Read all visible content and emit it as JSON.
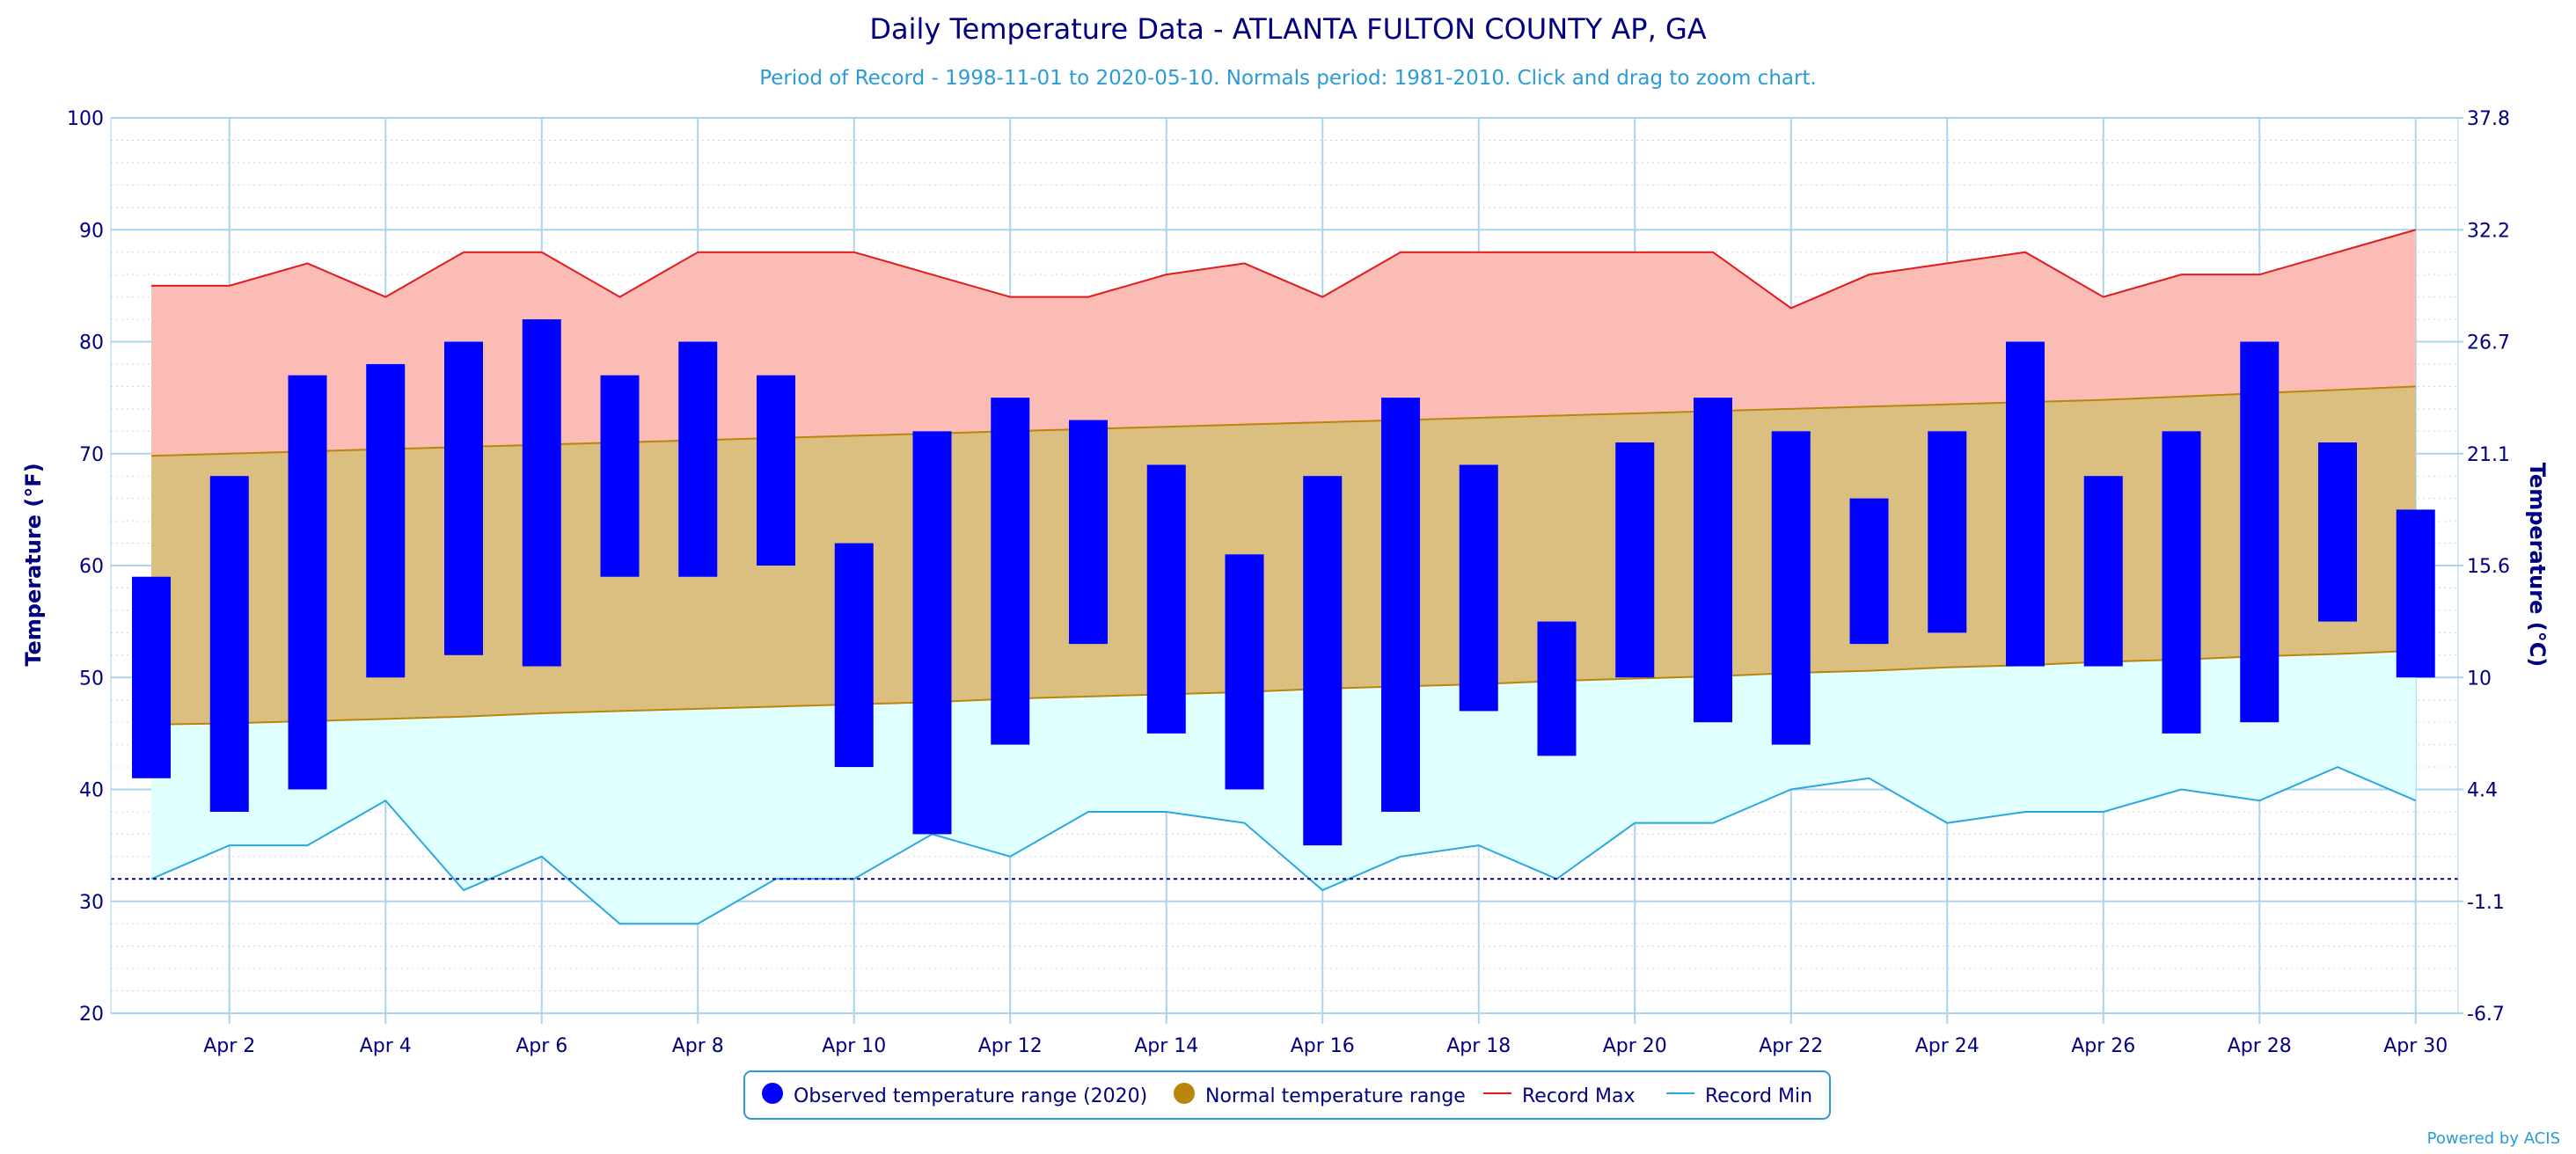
{
  "chart_data": {
    "type": "bar",
    "title": "Daily Temperature Data - ATLANTA FULTON COUNTY AP, GA",
    "subtitle": "Period of Record - 1998-11-01 to 2020-05-10. Normals period: 1981-2010. Click and drag to zoom chart.",
    "ylabel": "Temperature (°F)",
    "ylabel_right": "Temperature (°C)",
    "ylim": [
      20,
      100
    ],
    "y_ticks": [
      20,
      30,
      40,
      50,
      60,
      70,
      80,
      90,
      100
    ],
    "y_ticks_right": [
      "-6.7",
      "-1.1",
      "4.4",
      "10",
      "15.6",
      "21.1",
      "26.7",
      "32.2",
      "37.8"
    ],
    "x_ticks": [
      "Apr 2",
      "Apr 4",
      "Apr 6",
      "Apr 8",
      "Apr 10",
      "Apr 12",
      "Apr 14",
      "Apr 16",
      "Apr 18",
      "Apr 20",
      "Apr 22",
      "Apr 24",
      "Apr 26",
      "Apr 28",
      "Apr 30"
    ],
    "x_days": [
      1,
      2,
      3,
      4,
      5,
      6,
      7,
      8,
      9,
      10,
      11,
      12,
      13,
      14,
      15,
      16,
      17,
      18,
      19,
      20,
      21,
      22,
      23,
      24,
      25,
      26,
      27,
      28,
      29,
      30
    ],
    "freezing_line": 32,
    "grid": true,
    "legend_position": "bottom",
    "series": [
      {
        "name": "Observed temperature range (2020)",
        "color": "#0000ff",
        "low": [
          41,
          38,
          40,
          50,
          52,
          51,
          59,
          59,
          60,
          42,
          36,
          44,
          53,
          45,
          40,
          35,
          38,
          47,
          43,
          50,
          46,
          44,
          53,
          54,
          51,
          51,
          45,
          46,
          55,
          50
        ],
        "high": [
          59,
          68,
          77,
          78,
          80,
          82,
          77,
          80,
          77,
          62,
          72,
          75,
          73,
          69,
          61,
          68,
          75,
          69,
          55,
          71,
          75,
          72,
          66,
          72,
          80,
          68,
          72,
          80,
          71,
          65
        ]
      },
      {
        "name": "Normal temperature range",
        "color": "#b8860b",
        "low": [
          45.8,
          45.9,
          46.1,
          46.3,
          46.5,
          46.8,
          47.0,
          47.2,
          47.4,
          47.6,
          47.8,
          48.1,
          48.3,
          48.5,
          48.7,
          49.0,
          49.2,
          49.4,
          49.7,
          49.9,
          50.1,
          50.4,
          50.6,
          50.9,
          51.1,
          51.4,
          51.6,
          51.9,
          52.1,
          52.4
        ],
        "high": [
          69.8,
          70.0,
          70.2,
          70.4,
          70.6,
          70.8,
          71.0,
          71.2,
          71.4,
          71.6,
          71.8,
          72.0,
          72.2,
          72.4,
          72.6,
          72.8,
          73.0,
          73.2,
          73.4,
          73.6,
          73.8,
          74.0,
          74.2,
          74.4,
          74.6,
          74.8,
          75.1,
          75.4,
          75.7,
          76.0
        ]
      },
      {
        "name": "Record Max",
        "color": "#e31a1c",
        "values": [
          85,
          85,
          87,
          84,
          88,
          88,
          84,
          88,
          88,
          88,
          86,
          84,
          84,
          86,
          87,
          84,
          88,
          88,
          88,
          88,
          88,
          83,
          86,
          87,
          88,
          84,
          86,
          86,
          88,
          90
        ]
      },
      {
        "name": "Record Min",
        "color": "#29a8e0",
        "values": [
          32,
          35,
          35,
          39,
          31,
          34,
          28,
          28,
          32,
          32,
          36,
          34,
          38,
          38,
          37,
          31,
          34,
          35,
          32,
          37,
          37,
          40,
          41,
          37,
          38,
          38,
          40,
          39,
          42,
          39
        ]
      }
    ]
  },
  "credits": "Powered by ACIS"
}
